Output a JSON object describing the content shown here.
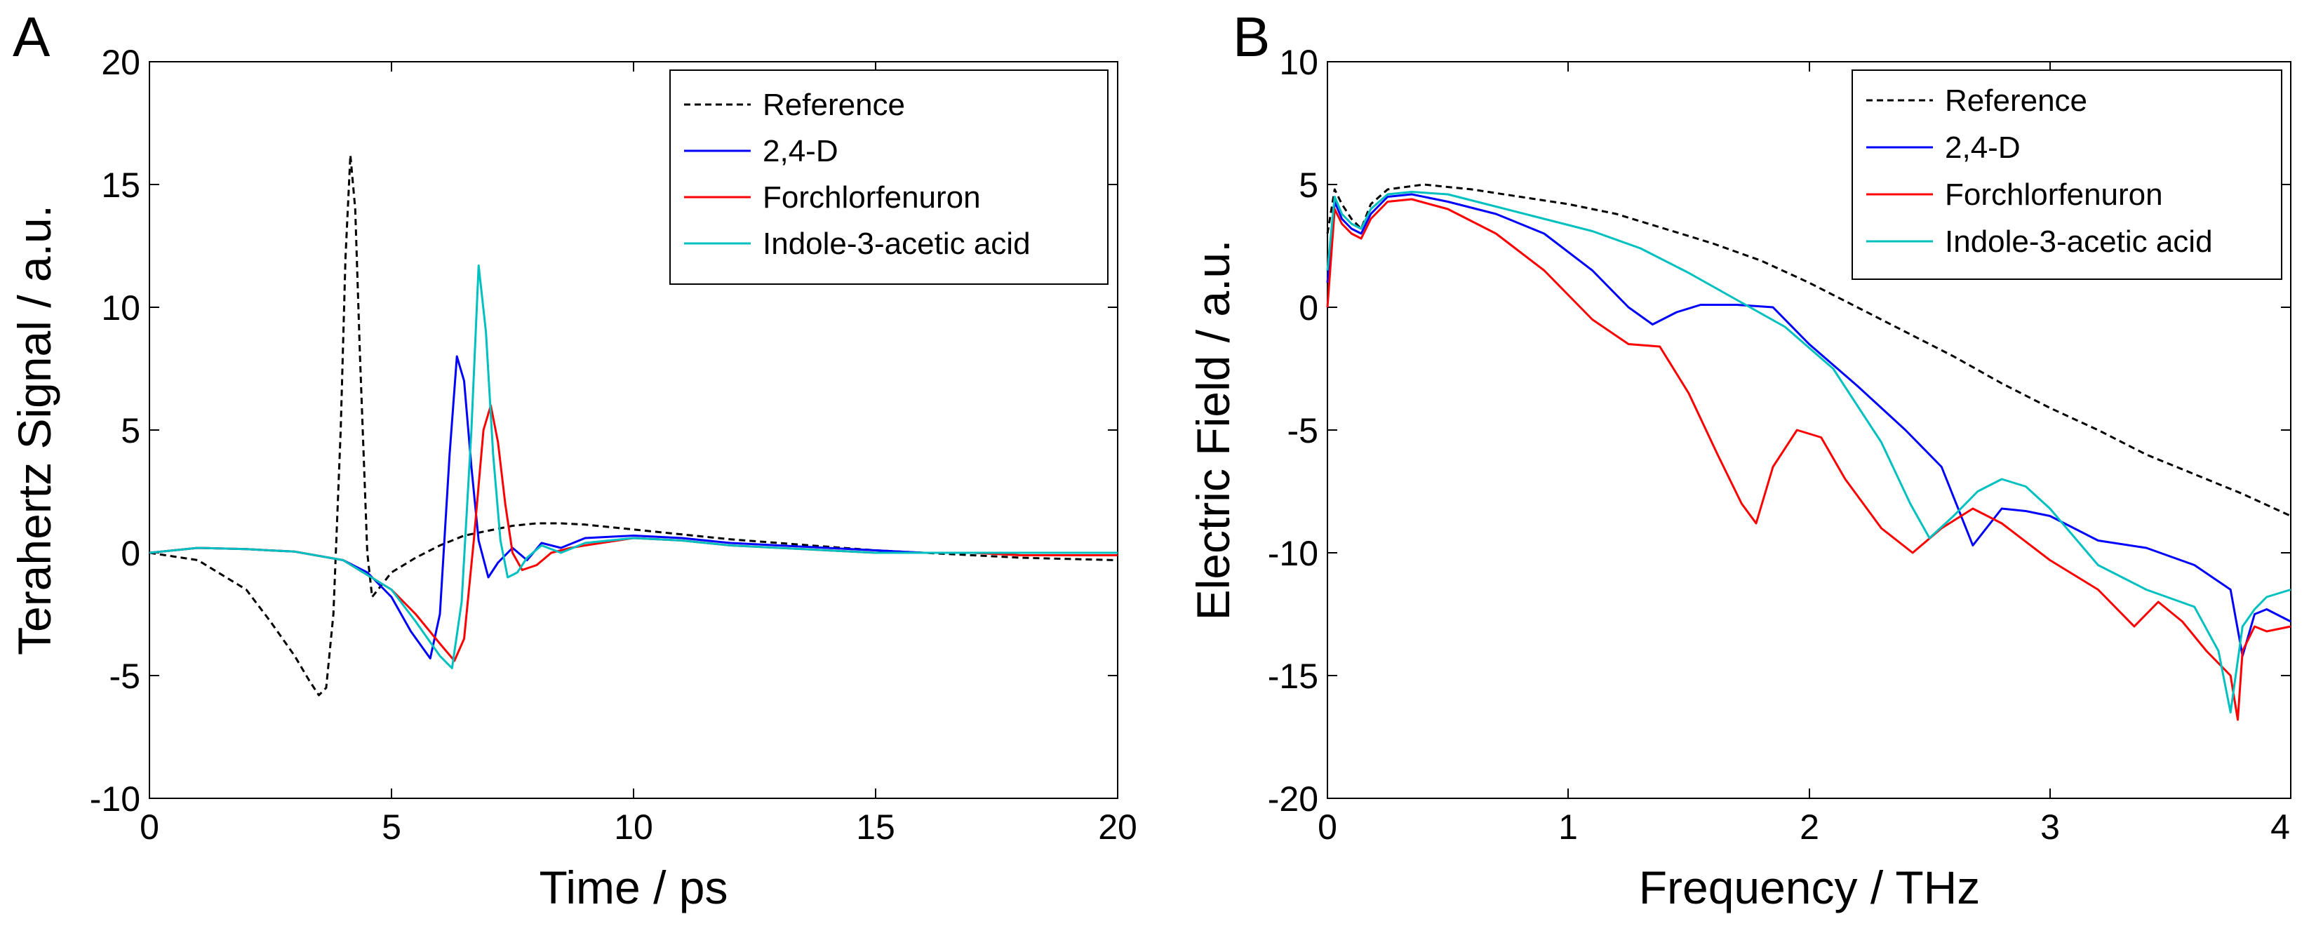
{
  "chart_data": [
    {
      "panel": "A",
      "type": "line",
      "xlabel": "Time / ps",
      "ylabel": "Terahertz Signal / a.u.",
      "xlim": [
        0,
        20
      ],
      "ylim": [
        -10,
        20
      ],
      "xticks": [
        0,
        5,
        10,
        15,
        20
      ],
      "yticks": [
        -10,
        -5,
        0,
        5,
        10,
        15,
        20
      ],
      "legend_position": "top-right",
      "series": [
        {
          "name": "Reference",
          "color": "#000000",
          "dash": true,
          "x": [
            0,
            1,
            2,
            2.5,
            3,
            3.3,
            3.5,
            3.65,
            3.8,
            3.95,
            4.05,
            4.15,
            4.25,
            4.35,
            4.5,
            4.6,
            4.8,
            5,
            5.5,
            6,
            6.5,
            7,
            7.5,
            8,
            8.5,
            9,
            10,
            11,
            12,
            13,
            14,
            15,
            16,
            17,
            18,
            19,
            20
          ],
          "y": [
            0,
            -0.3,
            -1.5,
            -2.8,
            -4.2,
            -5.2,
            -5.8,
            -5.5,
            -2.5,
            5,
            12,
            16.2,
            14,
            8,
            0,
            -1.8,
            -1.3,
            -0.8,
            -0.2,
            0.3,
            0.7,
            0.9,
            1.1,
            1.2,
            1.2,
            1.15,
            0.95,
            0.75,
            0.55,
            0.4,
            0.25,
            0.1,
            0,
            -0.1,
            -0.2,
            -0.25,
            -0.3
          ]
        },
        {
          "name": "2,4-D",
          "color": "#0000ff",
          "dash": false,
          "x": [
            0,
            1,
            2,
            3,
            4,
            4.5,
            5,
            5.4,
            5.8,
            6.0,
            6.2,
            6.35,
            6.5,
            6.65,
            6.8,
            7.0,
            7.2,
            7.5,
            7.8,
            8.1,
            8.5,
            9,
            10,
            11,
            12,
            13,
            14,
            15,
            16,
            17,
            18,
            19,
            20
          ],
          "y": [
            0,
            0.2,
            0.15,
            0.05,
            -0.3,
            -0.8,
            -1.8,
            -3.2,
            -4.3,
            -2.5,
            4,
            8,
            7,
            3.5,
            0.5,
            -1,
            -0.4,
            0.2,
            -0.3,
            0.4,
            0.2,
            0.6,
            0.7,
            0.6,
            0.4,
            0.3,
            0.2,
            0.1,
            0,
            0,
            0,
            0,
            0
          ]
        },
        {
          "name": "Forchlorfenuron",
          "color": "#ff0000",
          "dash": false,
          "x": [
            0,
            1,
            2,
            3,
            4,
            5,
            5.5,
            6,
            6.3,
            6.5,
            6.7,
            6.9,
            7.05,
            7.2,
            7.35,
            7.5,
            7.7,
            8,
            8.3,
            8.7,
            9,
            10,
            11,
            12,
            13,
            14,
            15,
            16,
            17,
            18,
            19,
            20
          ],
          "y": [
            0,
            0.2,
            0.15,
            0.05,
            -0.3,
            -1.5,
            -2.5,
            -3.7,
            -4.4,
            -3.5,
            0.5,
            5,
            6,
            4.5,
            2,
            0,
            -0.7,
            -0.5,
            0,
            0.2,
            0.3,
            0.6,
            0.5,
            0.3,
            0.2,
            0.1,
            0,
            0,
            0,
            -0.1,
            -0.1,
            -0.1
          ]
        },
        {
          "name": "Indole-3-acetic acid",
          "color": "#00c0c0",
          "dash": false,
          "x": [
            0,
            1,
            2,
            3,
            4,
            5,
            5.5,
            6,
            6.25,
            6.45,
            6.65,
            6.8,
            6.95,
            7.1,
            7.25,
            7.4,
            7.6,
            7.8,
            8.1,
            8.5,
            9,
            10,
            11,
            12,
            13,
            14,
            15,
            16,
            17,
            18,
            19,
            20
          ],
          "y": [
            0,
            0.2,
            0.15,
            0.05,
            -0.3,
            -1.5,
            -2.8,
            -4.2,
            -4.7,
            -2,
            5,
            11.7,
            9,
            4,
            0.5,
            -1,
            -0.8,
            -0.2,
            0.3,
            0,
            0.4,
            0.6,
            0.5,
            0.3,
            0.2,
            0.1,
            0,
            0,
            0,
            0,
            0,
            0
          ]
        }
      ]
    },
    {
      "panel": "B",
      "type": "line",
      "xlabel": "Frequency / THz",
      "ylabel": "Electric Field / a.u.",
      "xlim": [
        0,
        4
      ],
      "ylim": [
        -20,
        10
      ],
      "xticks": [
        0,
        1,
        2,
        3,
        4
      ],
      "yticks": [
        -20,
        -15,
        -10,
        -5,
        0,
        5,
        10
      ],
      "legend_position": "top-right",
      "series": [
        {
          "name": "Reference",
          "color": "#000000",
          "dash": true,
          "x": [
            0,
            0.03,
            0.06,
            0.1,
            0.14,
            0.18,
            0.25,
            0.4,
            0.6,
            0.8,
            1.0,
            1.2,
            1.4,
            1.6,
            1.8,
            2.0,
            2.2,
            2.4,
            2.6,
            2.8,
            3.0,
            3.2,
            3.4,
            3.6,
            3.8,
            4.0
          ],
          "y": [
            3,
            4.8,
            4.2,
            3.6,
            3.2,
            4.2,
            4.8,
            5,
            4.8,
            4.5,
            4.2,
            3.8,
            3.2,
            2.6,
            1.9,
            1.0,
            0,
            -1,
            -2,
            -3.1,
            -4.1,
            -5,
            -6,
            -6.8,
            -7.6,
            -8.5
          ]
        },
        {
          "name": "2,4-D",
          "color": "#0000ff",
          "dash": false,
          "x": [
            0,
            0.03,
            0.06,
            0.1,
            0.14,
            0.18,
            0.25,
            0.35,
            0.5,
            0.7,
            0.9,
            1.1,
            1.25,
            1.35,
            1.45,
            1.55,
            1.7,
            1.85,
            2.0,
            2.2,
            2.4,
            2.55,
            2.68,
            2.8,
            2.9,
            3.0,
            3.2,
            3.4,
            3.6,
            3.75,
            3.8,
            3.85,
            3.9,
            4.0
          ],
          "y": [
            1,
            4.3,
            3.6,
            3.2,
            3.0,
            3.8,
            4.5,
            4.6,
            4.3,
            3.8,
            3.0,
            1.5,
            0,
            -0.7,
            -0.2,
            0.1,
            0.1,
            0,
            -1.5,
            -3.2,
            -5,
            -6.5,
            -9.7,
            -8.2,
            -8.3,
            -8.5,
            -9.5,
            -9.8,
            -10.5,
            -11.5,
            -14.2,
            -12.5,
            -12.3,
            -12.8
          ]
        },
        {
          "name": "Forchlorfenuron",
          "color": "#ff0000",
          "dash": false,
          "x": [
            0,
            0.03,
            0.06,
            0.1,
            0.14,
            0.18,
            0.25,
            0.35,
            0.5,
            0.7,
            0.9,
            1.1,
            1.25,
            1.38,
            1.5,
            1.62,
            1.72,
            1.78,
            1.85,
            1.95,
            2.05,
            2.15,
            2.3,
            2.43,
            2.55,
            2.68,
            2.8,
            3.0,
            3.2,
            3.35,
            3.45,
            3.55,
            3.65,
            3.75,
            3.78,
            3.8,
            3.85,
            3.9,
            4.0
          ],
          "y": [
            0,
            4,
            3.4,
            3.0,
            2.8,
            3.6,
            4.3,
            4.4,
            4,
            3.0,
            1.5,
            -0.5,
            -1.5,
            -1.6,
            -3.5,
            -6,
            -8,
            -8.8,
            -6.5,
            -5,
            -5.3,
            -7,
            -9,
            -10,
            -9,
            -8.2,
            -8.8,
            -10.3,
            -11.5,
            -13,
            -12,
            -12.8,
            -14,
            -15,
            -16.8,
            -14,
            -13,
            -13.2,
            -13
          ]
        },
        {
          "name": "Indole-3-acetic acid",
          "color": "#00c0c0",
          "dash": false,
          "x": [
            0,
            0.03,
            0.06,
            0.1,
            0.14,
            0.18,
            0.25,
            0.35,
            0.5,
            0.7,
            0.9,
            1.1,
            1.3,
            1.5,
            1.7,
            1.9,
            2.1,
            2.3,
            2.42,
            2.5,
            2.6,
            2.7,
            2.8,
            2.9,
            3.0,
            3.2,
            3.4,
            3.6,
            3.7,
            3.75,
            3.8,
            3.85,
            3.9,
            4.0
          ],
          "y": [
            1.5,
            4.5,
            3.8,
            3.4,
            3.2,
            4.0,
            4.6,
            4.7,
            4.6,
            4.1,
            3.6,
            3.1,
            2.4,
            1.4,
            0.3,
            -0.8,
            -2.5,
            -5.5,
            -8,
            -9.4,
            -8.5,
            -7.5,
            -7.0,
            -7.3,
            -8.2,
            -10.5,
            -11.5,
            -12.2,
            -14,
            -16.5,
            -13,
            -12.3,
            -11.8,
            -11.5
          ]
        }
      ]
    }
  ],
  "panels": {
    "a": {
      "letter": "A",
      "xticks": [
        "0",
        "5",
        "10",
        "15",
        "20"
      ],
      "yticks": [
        "-10",
        "-5",
        "0",
        "5",
        "10",
        "15",
        "20"
      ],
      "xlabel": "Time / ps",
      "ylabel": "Terahertz Signal / a.u.",
      "legend": [
        "Reference",
        "2,4-D",
        "Forchlorfenuron",
        "Indole-3-acetic acid"
      ]
    },
    "b": {
      "letter": "B",
      "xticks": [
        "0",
        "1",
        "2",
        "3",
        "4"
      ],
      "yticks": [
        "-20",
        "-15",
        "-10",
        "-5",
        "0",
        "5",
        "10"
      ],
      "xlabel": "Frequency / THz",
      "ylabel": "Electric Field / a.u.",
      "legend": [
        "Reference",
        "2,4-D",
        "Forchlorfenuron",
        "Indole-3-acetic acid"
      ]
    }
  }
}
